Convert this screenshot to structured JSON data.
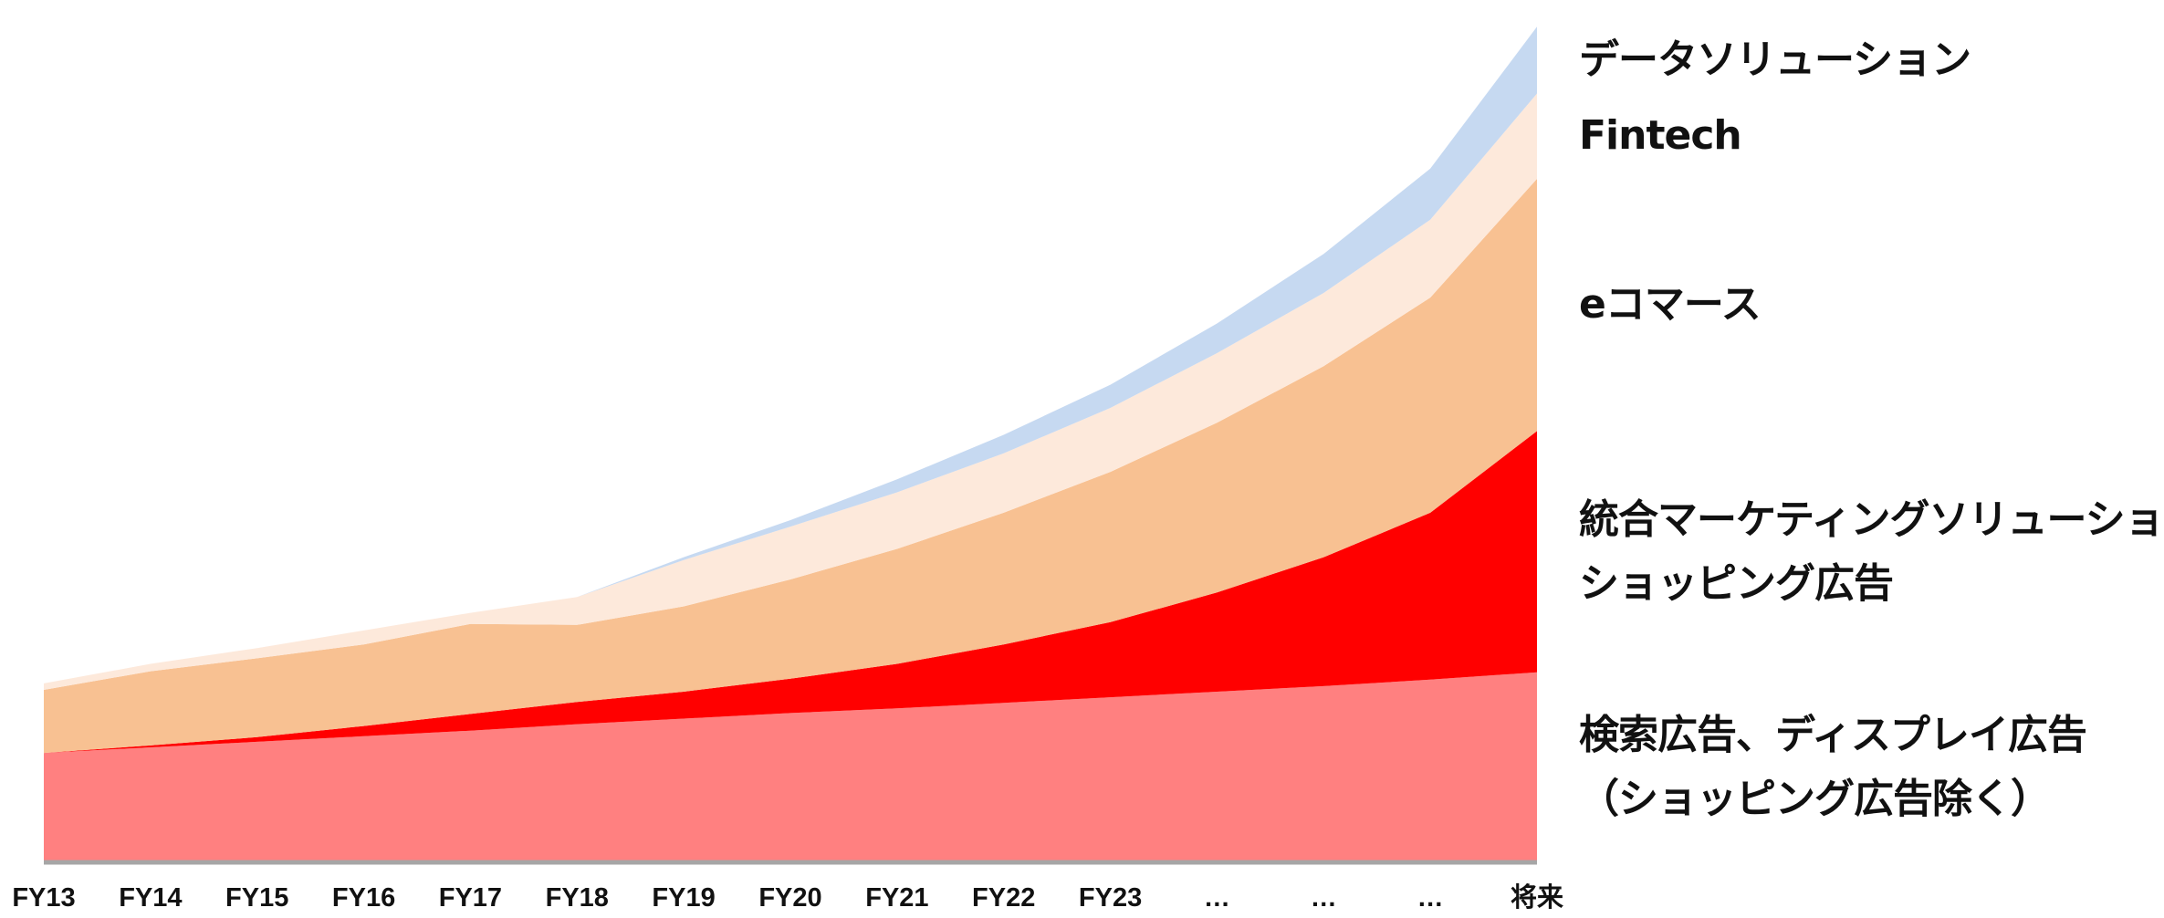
{
  "chart_data": {
    "type": "area",
    "stacked": true,
    "categories": [
      "FY13",
      "FY14",
      "FY15",
      "FY16",
      "FY17",
      "FY18",
      "FY19",
      "FY20",
      "FY21",
      "FY22",
      "FY23",
      "…",
      "…",
      "…",
      "将来"
    ],
    "series": [
      {
        "name": "検索広告、ディスプレイ広告（ショッピング広告除く）",
        "name_lines": [
          "検索広告、ディスプレイ広告",
          "（ショッピング広告除く）"
        ],
        "color": "#ff8080",
        "values": [
          118,
          124,
          130,
          136,
          142,
          149,
          155,
          161,
          166,
          172,
          178,
          184,
          190,
          197,
          205
        ]
      },
      {
        "name": "統合マーケティングソリューション、ショッピング広告",
        "name_lines": [
          "統合マーケティングソリューション、",
          "ショッピング広告"
        ],
        "color": "#ff0000",
        "values": [
          0,
          2,
          5,
          11,
          18,
          24,
          29,
          37,
          48,
          63,
          81,
          107,
          139,
          180,
          260
        ]
      },
      {
        "name": "eコマース",
        "name_lines": [
          "eコマース"
        ],
        "color": "#f8c192",
        "values": [
          68,
          80,
          85,
          88,
          97,
          83,
          92,
          107,
          124,
          142,
          162,
          183,
          206,
          232,
          272
        ]
      },
      {
        "name": "Fintech",
        "name_lines": [
          "Fintech"
        ],
        "color": "#fde9db",
        "values": [
          7,
          8,
          11,
          15,
          12,
          30,
          50,
          57,
          61,
          64,
          69,
          75,
          79,
          84,
          92
        ]
      },
      {
        "name": "データソリューション",
        "name_lines": [
          "データソリューション"
        ],
        "color": "#c6d9f1",
        "values": [
          0,
          0,
          0,
          0,
          0,
          0,
          3,
          7,
          14,
          20,
          25,
          32,
          42,
          55,
          72
        ]
      }
    ],
    "ylim": [
      0,
      920
    ],
    "grid": false,
    "legend": "right"
  }
}
